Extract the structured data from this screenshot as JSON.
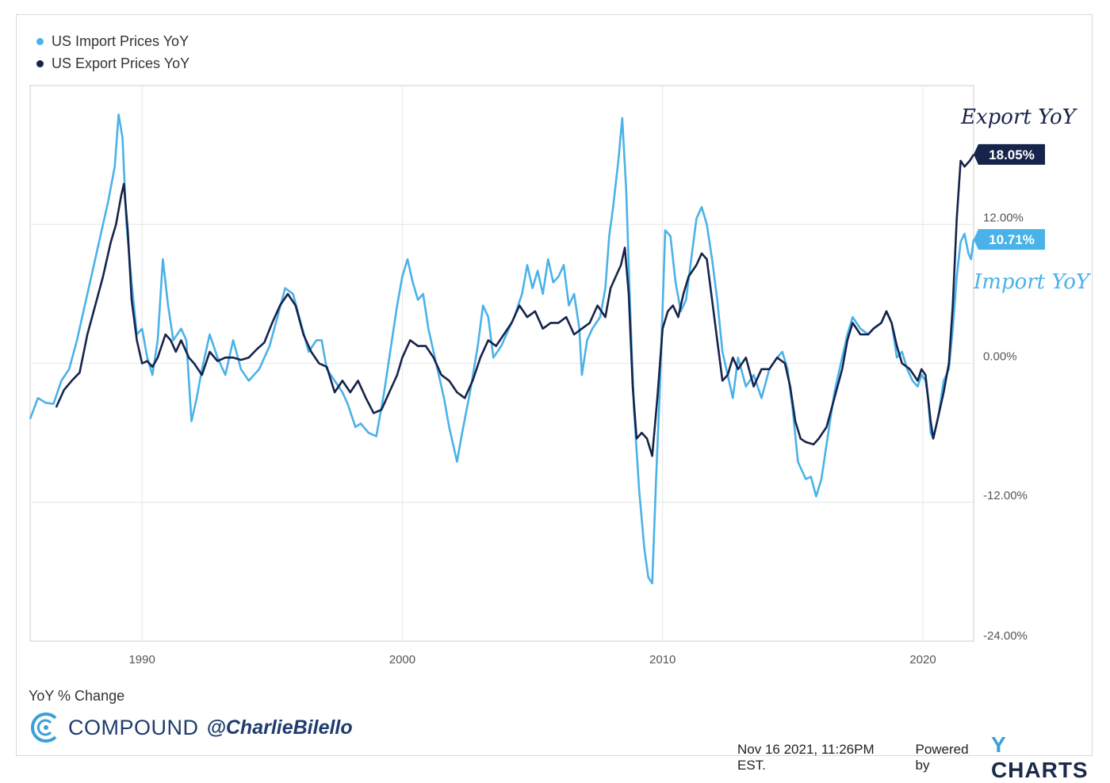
{
  "chart_data": {
    "type": "line",
    "xlim": [
      1985.7,
      2021.95
    ],
    "ylim": [
      -24,
      24
    ],
    "x_ticks": [
      "1990",
      "2000",
      "2010",
      "2020"
    ],
    "x_tick_values": [
      1990,
      2000,
      2010,
      2020
    ],
    "y_ticks": [
      "12.00%",
      "0.00%",
      "-12.00%",
      "-24.00%"
    ],
    "y_tick_values": [
      12,
      0,
      -12,
      -24
    ],
    "grid": true,
    "legend_position": "top-left",
    "series": [
      {
        "name": "US Import Prices YoY",
        "color": "#4ab2e8",
        "end_label": "10.71%",
        "annotation": "Import YoY",
        "points": [
          [
            1985.7,
            -4.8
          ],
          [
            1986.0,
            -3.0
          ],
          [
            1986.3,
            -3.4
          ],
          [
            1986.6,
            -3.5
          ],
          [
            1986.9,
            -1.5
          ],
          [
            1987.2,
            -0.5
          ],
          [
            1987.5,
            2.0
          ],
          [
            1987.8,
            5.0
          ],
          [
            1988.1,
            8.0
          ],
          [
            1988.4,
            11.0
          ],
          [
            1988.7,
            14.0
          ],
          [
            1988.95,
            17.0
          ],
          [
            1989.1,
            21.5
          ],
          [
            1989.25,
            19.5
          ],
          [
            1989.4,
            12.0
          ],
          [
            1989.6,
            7.0
          ],
          [
            1989.8,
            2.5
          ],
          [
            1990.0,
            3.0
          ],
          [
            1990.2,
            0.5
          ],
          [
            1990.4,
            -1.0
          ],
          [
            1990.6,
            2.0
          ],
          [
            1990.8,
            9.0
          ],
          [
            1991.0,
            5.0
          ],
          [
            1991.2,
            2.0
          ],
          [
            1991.5,
            3.0
          ],
          [
            1991.7,
            2.0
          ],
          [
            1991.9,
            -5.0
          ],
          [
            1992.1,
            -3.0
          ],
          [
            1992.3,
            -0.5
          ],
          [
            1992.6,
            2.5
          ],
          [
            1992.9,
            0.5
          ],
          [
            1993.2,
            -1.0
          ],
          [
            1993.5,
            2.0
          ],
          [
            1993.8,
            -0.5
          ],
          [
            1994.1,
            -1.5
          ],
          [
            1994.5,
            -0.5
          ],
          [
            1994.9,
            1.5
          ],
          [
            1995.2,
            4.0
          ],
          [
            1995.5,
            6.5
          ],
          [
            1995.8,
            6.0
          ],
          [
            1996.1,
            3.5
          ],
          [
            1996.4,
            1.0
          ],
          [
            1996.7,
            2.0
          ],
          [
            1996.9,
            2.0
          ],
          [
            1997.1,
            -0.5
          ],
          [
            1997.4,
            -1.5
          ],
          [
            1997.7,
            -2.5
          ],
          [
            1997.9,
            -3.5
          ],
          [
            1998.2,
            -5.5
          ],
          [
            1998.4,
            -5.2
          ],
          [
            1998.7,
            -6.0
          ],
          [
            1999.0,
            -6.3
          ],
          [
            1999.3,
            -2.5
          ],
          [
            1999.6,
            2.0
          ],
          [
            1999.8,
            5.0
          ],
          [
            2000.0,
            7.5
          ],
          [
            2000.2,
            9.0
          ],
          [
            2000.4,
            7.0
          ],
          [
            2000.6,
            5.5
          ],
          [
            2000.8,
            6.0
          ],
          [
            2001.0,
            3.0
          ],
          [
            2001.3,
            0.0
          ],
          [
            2001.6,
            -3.0
          ],
          [
            2001.8,
            -5.5
          ],
          [
            2002.0,
            -7.5
          ],
          [
            2002.1,
            -8.5
          ],
          [
            2002.3,
            -6.0
          ],
          [
            2002.6,
            -2.5
          ],
          [
            2002.9,
            1.5
          ],
          [
            2003.1,
            5.0
          ],
          [
            2003.3,
            4.0
          ],
          [
            2003.5,
            0.5
          ],
          [
            2003.8,
            1.5
          ],
          [
            2004.0,
            2.5
          ],
          [
            2004.3,
            4.0
          ],
          [
            2004.6,
            6.0
          ],
          [
            2004.8,
            8.5
          ],
          [
            2005.0,
            6.5
          ],
          [
            2005.2,
            8.0
          ],
          [
            2005.4,
            6.0
          ],
          [
            2005.6,
            9.0
          ],
          [
            2005.8,
            7.0
          ],
          [
            2006.0,
            7.5
          ],
          [
            2006.2,
            8.5
          ],
          [
            2006.4,
            5.0
          ],
          [
            2006.6,
            6.0
          ],
          [
            2006.8,
            3.0
          ],
          [
            2006.9,
            -1.0
          ],
          [
            2007.1,
            2.0
          ],
          [
            2007.3,
            3.0
          ],
          [
            2007.6,
            4.0
          ],
          [
            2007.8,
            6.5
          ],
          [
            2007.95,
            11.0
          ],
          [
            2008.1,
            13.5
          ],
          [
            2008.3,
            17.5
          ],
          [
            2008.45,
            21.2
          ],
          [
            2008.6,
            15.0
          ],
          [
            2008.75,
            5.0
          ],
          [
            2008.9,
            -4.0
          ],
          [
            2009.1,
            -11.0
          ],
          [
            2009.3,
            -16.0
          ],
          [
            2009.45,
            -18.5
          ],
          [
            2009.6,
            -19.0
          ],
          [
            2009.75,
            -10.0
          ],
          [
            2009.9,
            -2.0
          ],
          [
            2010.1,
            11.5
          ],
          [
            2010.3,
            11.0
          ],
          [
            2010.5,
            7.0
          ],
          [
            2010.7,
            4.5
          ],
          [
            2010.9,
            5.5
          ],
          [
            2011.1,
            9.0
          ],
          [
            2011.3,
            12.5
          ],
          [
            2011.5,
            13.5
          ],
          [
            2011.7,
            12.0
          ],
          [
            2011.9,
            9.0
          ],
          [
            2012.1,
            5.5
          ],
          [
            2012.3,
            1.0
          ],
          [
            2012.5,
            -1.0
          ],
          [
            2012.7,
            -3.0
          ],
          [
            2012.9,
            0.5
          ],
          [
            2013.2,
            -2.0
          ],
          [
            2013.5,
            -1.0
          ],
          [
            2013.8,
            -3.0
          ],
          [
            2014.1,
            -0.5
          ],
          [
            2014.4,
            0.5
          ],
          [
            2014.6,
            1.0
          ],
          [
            2014.8,
            -0.5
          ],
          [
            2015.0,
            -4.0
          ],
          [
            2015.2,
            -8.5
          ],
          [
            2015.5,
            -10.0
          ],
          [
            2015.7,
            -9.8
          ],
          [
            2015.9,
            -11.5
          ],
          [
            2016.1,
            -10.0
          ],
          [
            2016.3,
            -7.0
          ],
          [
            2016.6,
            -2.5
          ],
          [
            2016.9,
            0.5
          ],
          [
            2017.1,
            2.5
          ],
          [
            2017.3,
            4.0
          ],
          [
            2017.6,
            3.0
          ],
          [
            2017.9,
            2.5
          ],
          [
            2018.1,
            3.0
          ],
          [
            2018.4,
            3.5
          ],
          [
            2018.6,
            4.5
          ],
          [
            2018.8,
            3.5
          ],
          [
            2019.0,
            0.5
          ],
          [
            2019.2,
            1.0
          ],
          [
            2019.4,
            -0.5
          ],
          [
            2019.6,
            -1.5
          ],
          [
            2019.8,
            -2.0
          ],
          [
            2019.95,
            -1.0
          ],
          [
            2020.1,
            -1.5
          ],
          [
            2020.2,
            -3.0
          ],
          [
            2020.3,
            -6.0
          ],
          [
            2020.4,
            -6.5
          ],
          [
            2020.6,
            -4.5
          ],
          [
            2020.8,
            -1.5
          ],
          [
            2021.0,
            -0.5
          ],
          [
            2021.15,
            3.0
          ],
          [
            2021.3,
            7.5
          ],
          [
            2021.45,
            10.5
          ],
          [
            2021.6,
            11.2
          ],
          [
            2021.75,
            9.5
          ],
          [
            2021.85,
            9.0
          ],
          [
            2021.95,
            10.71
          ]
        ]
      },
      {
        "name": "US Export Prices YoY",
        "color": "#16234a",
        "end_label": "18.05%",
        "annotation": "Export YoY",
        "points": [
          [
            1986.7,
            -3.8
          ],
          [
            1987.0,
            -2.3
          ],
          [
            1987.3,
            -1.5
          ],
          [
            1987.6,
            -0.8
          ],
          [
            1987.9,
            2.5
          ],
          [
            1988.2,
            5.0
          ],
          [
            1988.5,
            7.5
          ],
          [
            1988.8,
            10.5
          ],
          [
            1989.0,
            12.0
          ],
          [
            1989.2,
            14.5
          ],
          [
            1989.3,
            15.5
          ],
          [
            1989.45,
            11.5
          ],
          [
            1989.6,
            5.5
          ],
          [
            1989.8,
            2.0
          ],
          [
            1990.0,
            0.0
          ],
          [
            1990.2,
            0.2
          ],
          [
            1990.4,
            -0.3
          ],
          [
            1990.6,
            0.5
          ],
          [
            1990.9,
            2.5
          ],
          [
            1991.1,
            2.0
          ],
          [
            1991.3,
            1.0
          ],
          [
            1991.5,
            2.0
          ],
          [
            1991.8,
            0.5
          ],
          [
            1992.0,
            0.0
          ],
          [
            1992.3,
            -1.0
          ],
          [
            1992.6,
            1.0
          ],
          [
            1992.9,
            0.2
          ],
          [
            1993.2,
            0.5
          ],
          [
            1993.5,
            0.5
          ],
          [
            1993.8,
            0.3
          ],
          [
            1994.1,
            0.5
          ],
          [
            1994.4,
            1.2
          ],
          [
            1994.7,
            1.8
          ],
          [
            1995.0,
            3.5
          ],
          [
            1995.3,
            5.0
          ],
          [
            1995.6,
            6.0
          ],
          [
            1995.9,
            5.0
          ],
          [
            1996.2,
            2.5
          ],
          [
            1996.5,
            1.0
          ],
          [
            1996.8,
            0.0
          ],
          [
            1997.1,
            -0.3
          ],
          [
            1997.4,
            -2.5
          ],
          [
            1997.7,
            -1.5
          ],
          [
            1998.0,
            -2.5
          ],
          [
            1998.3,
            -1.5
          ],
          [
            1998.6,
            -3.0
          ],
          [
            1998.9,
            -4.3
          ],
          [
            1999.2,
            -4.0
          ],
          [
            1999.5,
            -2.5
          ],
          [
            1999.8,
            -1.0
          ],
          [
            2000.0,
            0.5
          ],
          [
            2000.3,
            2.0
          ],
          [
            2000.6,
            1.5
          ],
          [
            2000.9,
            1.5
          ],
          [
            2001.2,
            0.5
          ],
          [
            2001.5,
            -1.0
          ],
          [
            2001.8,
            -1.5
          ],
          [
            2002.1,
            -2.5
          ],
          [
            2002.4,
            -3.0
          ],
          [
            2002.7,
            -1.5
          ],
          [
            2003.0,
            0.5
          ],
          [
            2003.3,
            2.0
          ],
          [
            2003.6,
            1.5
          ],
          [
            2003.9,
            2.5
          ],
          [
            2004.2,
            3.5
          ],
          [
            2004.5,
            5.0
          ],
          [
            2004.8,
            4.0
          ],
          [
            2005.1,
            4.5
          ],
          [
            2005.4,
            3.0
          ],
          [
            2005.7,
            3.5
          ],
          [
            2006.0,
            3.5
          ],
          [
            2006.3,
            4.0
          ],
          [
            2006.6,
            2.5
          ],
          [
            2006.9,
            3.0
          ],
          [
            2007.2,
            3.5
          ],
          [
            2007.5,
            5.0
          ],
          [
            2007.8,
            4.0
          ],
          [
            2008.0,
            6.5
          ],
          [
            2008.2,
            7.5
          ],
          [
            2008.4,
            8.5
          ],
          [
            2008.55,
            10.0
          ],
          [
            2008.7,
            6.0
          ],
          [
            2008.85,
            -2.0
          ],
          [
            2009.0,
            -6.5
          ],
          [
            2009.2,
            -6.0
          ],
          [
            2009.4,
            -6.5
          ],
          [
            2009.6,
            -8.0
          ],
          [
            2009.8,
            -3.0
          ],
          [
            2010.0,
            3.0
          ],
          [
            2010.2,
            4.5
          ],
          [
            2010.4,
            5.0
          ],
          [
            2010.6,
            4.0
          ],
          [
            2010.8,
            6.0
          ],
          [
            2011.0,
            7.5
          ],
          [
            2011.3,
            8.5
          ],
          [
            2011.5,
            9.5
          ],
          [
            2011.7,
            9.0
          ],
          [
            2011.9,
            5.5
          ],
          [
            2012.1,
            2.0
          ],
          [
            2012.3,
            -1.5
          ],
          [
            2012.5,
            -1.0
          ],
          [
            2012.7,
            0.5
          ],
          [
            2012.9,
            -0.5
          ],
          [
            2013.2,
            0.5
          ],
          [
            2013.5,
            -2.0
          ],
          [
            2013.8,
            -0.5
          ],
          [
            2014.1,
            -0.5
          ],
          [
            2014.4,
            0.5
          ],
          [
            2014.7,
            0.0
          ],
          [
            2014.9,
            -2.0
          ],
          [
            2015.1,
            -5.0
          ],
          [
            2015.3,
            -6.5
          ],
          [
            2015.5,
            -6.8
          ],
          [
            2015.8,
            -7.0
          ],
          [
            2016.0,
            -6.5
          ],
          [
            2016.3,
            -5.5
          ],
          [
            2016.6,
            -3.0
          ],
          [
            2016.9,
            -0.5
          ],
          [
            2017.1,
            2.0
          ],
          [
            2017.3,
            3.5
          ],
          [
            2017.6,
            2.5
          ],
          [
            2017.9,
            2.5
          ],
          [
            2018.1,
            3.0
          ],
          [
            2018.4,
            3.5
          ],
          [
            2018.6,
            4.5
          ],
          [
            2018.8,
            3.5
          ],
          [
            2019.0,
            1.5
          ],
          [
            2019.2,
            0.0
          ],
          [
            2019.5,
            -0.5
          ],
          [
            2019.8,
            -1.5
          ],
          [
            2019.95,
            -0.5
          ],
          [
            2020.1,
            -1.0
          ],
          [
            2020.3,
            -5.0
          ],
          [
            2020.4,
            -6.5
          ],
          [
            2020.6,
            -4.5
          ],
          [
            2020.8,
            -2.5
          ],
          [
            2021.0,
            0.0
          ],
          [
            2021.15,
            5.0
          ],
          [
            2021.3,
            12.5
          ],
          [
            2021.45,
            17.5
          ],
          [
            2021.6,
            17.0
          ],
          [
            2021.8,
            17.5
          ],
          [
            2021.95,
            18.05
          ]
        ]
      }
    ],
    "ylabel": "YoY % Change"
  },
  "branding": {
    "company": "COMPOUND",
    "handle": "@CharlieBilello",
    "timestamp": "Nov 16 2021, 11:26PM EST.",
    "powered_by": "Powered by",
    "ycharts": "YCHARTS"
  }
}
